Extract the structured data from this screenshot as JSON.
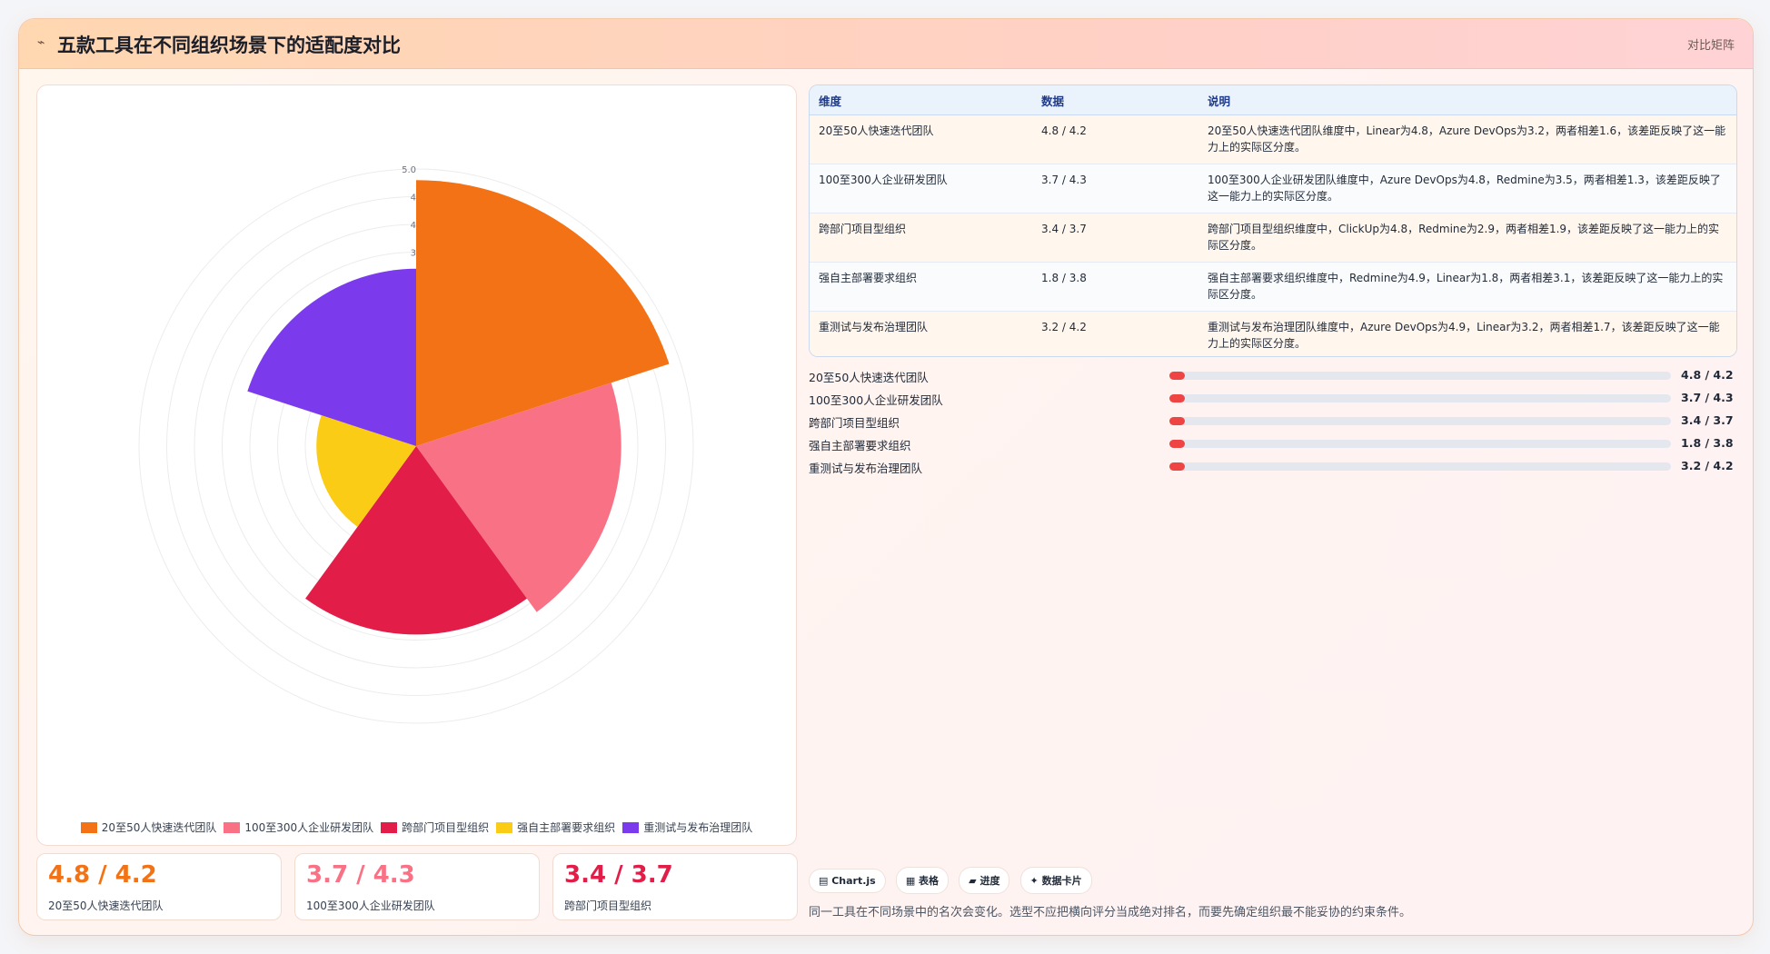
{
  "header": {
    "icon": "chart-line-icon",
    "title": "五款工具在不同组织场景下的适配度对比",
    "tag": "对比矩阵"
  },
  "chart_data": {
    "type": "polarArea",
    "categories": [
      "20至50人快速迭代团队",
      "100至300人企业研发团队",
      "跨部门项目型组织",
      "强自主部署要求组织",
      "重测试与发布治理团队"
    ],
    "values": [
      4.8,
      3.7,
      3.4,
      1.8,
      3.2
    ],
    "colors": [
      "#f47216",
      "#f87185",
      "#e11d48",
      "#facc15",
      "#7c3aed"
    ],
    "r_ticks": [
      "5.0",
      "4",
      "4",
      "3"
    ],
    "rlim": [
      0,
      5
    ],
    "legend_position": "bottom"
  },
  "stats": [
    {
      "value": "4.8 / 4.2",
      "label": "20至50人快速迭代团队",
      "color": "#f47216"
    },
    {
      "value": "3.7 / 4.3",
      "label": "100至300人企业研发团队",
      "color": "#f87185"
    },
    {
      "value": "3.4 / 3.7",
      "label": "跨部门项目型组织",
      "color": "#e11d48"
    }
  ],
  "table": {
    "headers": [
      "维度",
      "数据",
      "说明"
    ],
    "rows": [
      {
        "dim": "20至50人快速迭代团队",
        "data": "4.8 / 4.2",
        "desc": "20至50人快速迭代团队维度中，Linear为4.8，Azure DevOps为3.2，两者相差1.6，该差距反映了这一能力上的实际区分度。"
      },
      {
        "dim": "100至300人企业研发团队",
        "data": "3.7 / 4.3",
        "desc": "100至300人企业研发团队维度中，Azure DevOps为4.8，Redmine为3.5，两者相差1.3，该差距反映了这一能力上的实际区分度。"
      },
      {
        "dim": "跨部门项目型组织",
        "data": "3.4 / 3.7",
        "desc": "跨部门项目型组织维度中，ClickUp为4.8，Redmine为2.9，两者相差1.9，该差距反映了这一能力上的实际区分度。"
      },
      {
        "dim": "强自主部署要求组织",
        "data": "1.8 / 3.8",
        "desc": "强自主部署要求组织维度中，Redmine为4.9，Linear为1.8，两者相差3.1，该差距反映了这一能力上的实际区分度。"
      },
      {
        "dim": "重测试与发布治理团队",
        "data": "3.2 / 4.2",
        "desc": "重测试与发布治理团队维度中，Azure DevOps为4.9，Linear为3.2，两者相差1.7，该差距反映了这一能力上的实际区分度。"
      }
    ]
  },
  "progress": [
    {
      "label": "20至50人快速迭代团队",
      "value": "4.8 / 4.2",
      "fill": 0.03
    },
    {
      "label": "100至300人企业研发团队",
      "value": "3.7 / 4.3",
      "fill": 0.03
    },
    {
      "label": "跨部门项目型组织",
      "value": "3.4 / 3.7",
      "fill": 0.03
    },
    {
      "label": "强自主部署要求组织",
      "value": "1.8 / 3.8",
      "fill": 0.03
    },
    {
      "label": "重测试与发布治理团队",
      "value": "3.2 / 4.2",
      "fill": 0.03
    }
  ],
  "chips": [
    "▤ Chart.js",
    "▦ 表格",
    "▰ 进度",
    "✦ 数据卡片"
  ],
  "note": "同一工具在不同场景中的名次会变化。选型不应把横向评分当成绝对排名，而要先确定组织最不能妥协的约束条件。"
}
